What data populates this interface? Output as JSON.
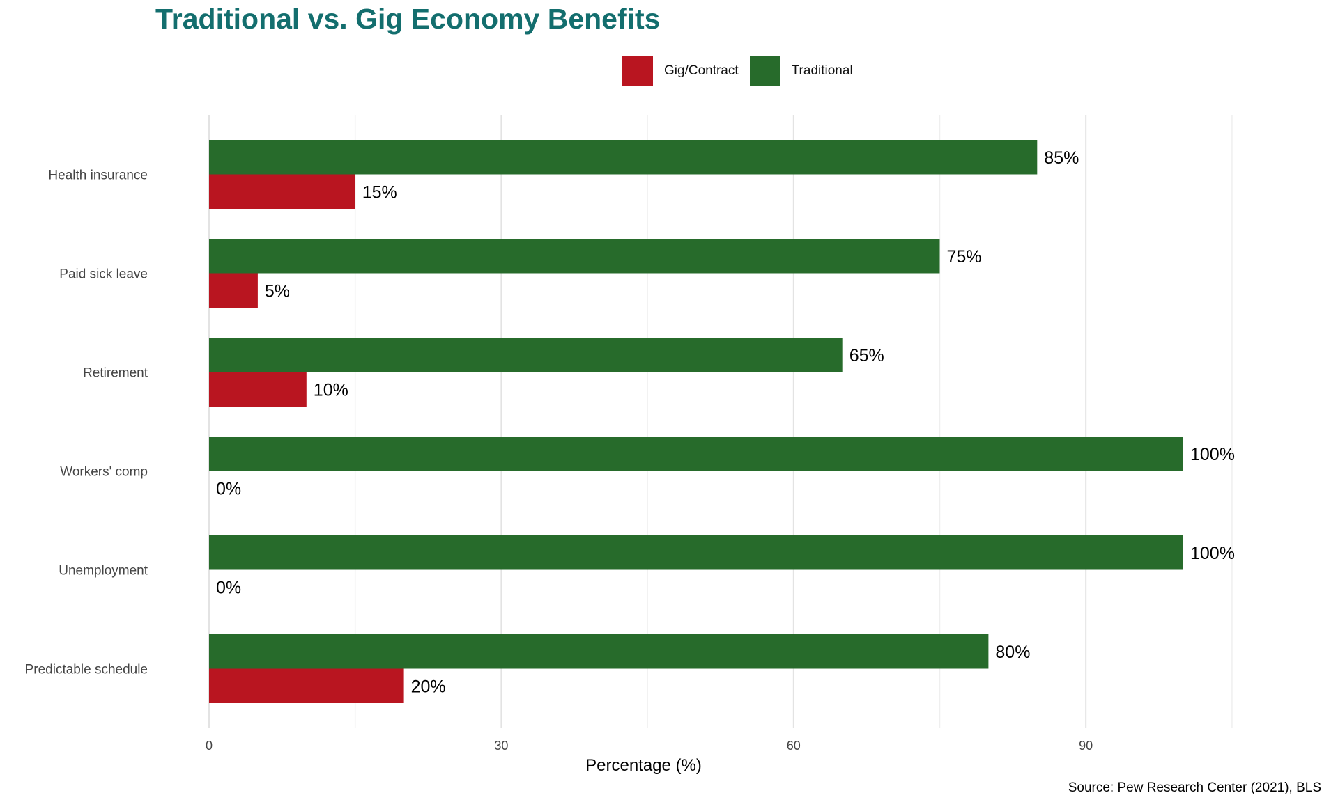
{
  "chart_data": {
    "type": "bar",
    "orientation": "horizontal",
    "title": "Traditional vs. Gig Economy Benefits",
    "xlabel": "Percentage (%)",
    "ylabel": "",
    "caption": "Source: Pew Research Center (2021), BLS",
    "categories": [
      "Health insurance",
      "Paid sick leave",
      "Retirement",
      "Workers' comp",
      "Unemployment",
      "Predictable schedule"
    ],
    "series": [
      {
        "name": "Traditional",
        "color": "#276b2b",
        "values": [
          85,
          75,
          65,
          100,
          100,
          80
        ]
      },
      {
        "name": "Gig/Contract",
        "color": "#b91520",
        "values": [
          15,
          5,
          10,
          0,
          0,
          20
        ]
      }
    ],
    "legend": {
      "position": "top",
      "order": [
        "Gig/Contract",
        "Traditional"
      ]
    },
    "xlim": [
      0,
      105
    ],
    "xticks": [
      0,
      30,
      60,
      90
    ],
    "grid": true,
    "value_label_suffix": "%"
  }
}
